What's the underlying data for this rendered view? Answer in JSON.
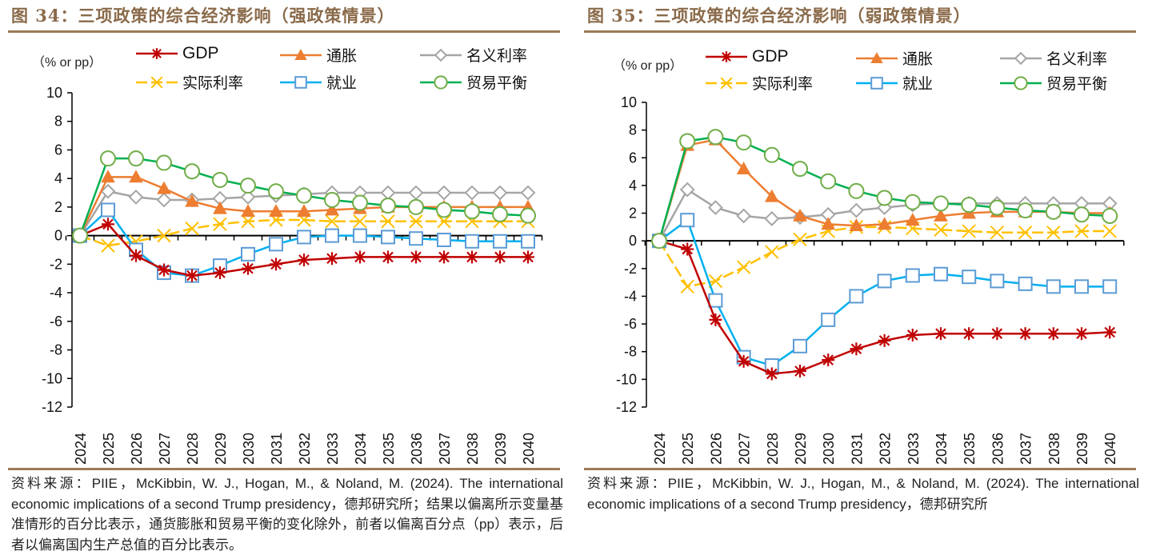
{
  "panels": [
    {
      "title": "图 34：三项政策的综合经济影响（强政策情景）",
      "unit_label": "（% or pp）",
      "source": "资料来源：PIIE，McKibbin, W. J., Hogan, M., & Noland, M. (2024). The international economic implications of a second Trump presidency，德邦研究所；结果以偏离所示变量基准情形的百分比表示，通货膨胀和贸易平衡的变化除外，前者以偏离百分点（pp）表示，后者以偏离国内生产总值的百分比表示。"
    },
    {
      "title": "图 35：三项政策的综合经济影响（弱政策情景）",
      "unit_label": "（% or pp）",
      "source": "资料来源：PIIE，McKibbin, W. J., Hogan, M., & Noland, M. (2024). The international economic implications of a second Trump presidency，德邦研究所"
    }
  ],
  "chart_data": [
    {
      "type": "line",
      "title": "图 34：三项政策的综合经济影响（强政策情景）",
      "ylabel": "% or pp",
      "xlabel": "",
      "ylim": [
        -12,
        10
      ],
      "yticks": [
        10,
        8,
        6,
        4,
        2,
        0,
        -2,
        -4,
        -6,
        -8,
        -10,
        -12
      ],
      "x": [
        "2024",
        "2025",
        "2026",
        "2027",
        "2028",
        "2029",
        "2030",
        "2031",
        "2032",
        "2033",
        "2034",
        "2035",
        "2036",
        "2037",
        "2038",
        "2039",
        "2040"
      ],
      "legend_position": "top",
      "series": [
        {
          "name": "GDP",
          "color": "#c00000",
          "marker": "asterisk",
          "values": [
            0,
            0.8,
            -1.4,
            -2.4,
            -2.8,
            -2.6,
            -2.3,
            -2.0,
            -1.7,
            -1.6,
            -1.5,
            -1.5,
            -1.5,
            -1.5,
            -1.5,
            -1.5,
            -1.5
          ]
        },
        {
          "name": "通胀",
          "color": "#ed7d31",
          "marker": "triangle",
          "values": [
            0,
            4.1,
            4.1,
            3.3,
            2.4,
            1.9,
            1.7,
            1.7,
            1.7,
            1.8,
            1.9,
            2.0,
            2.0,
            2.0,
            2.0,
            2.0,
            2.0
          ]
        },
        {
          "name": "名义利率",
          "color": "#a5a5a5",
          "marker": "diamond",
          "values": [
            0,
            3.1,
            2.7,
            2.5,
            2.5,
            2.6,
            2.7,
            2.8,
            2.9,
            3.0,
            3.0,
            3.0,
            3.0,
            3.0,
            3.0,
            3.0,
            3.0
          ]
        },
        {
          "name": "实际利率",
          "color": "#ffc000",
          "marker": "x",
          "dashed": true,
          "values": [
            0,
            -0.7,
            -0.4,
            0.0,
            0.5,
            0.8,
            1.0,
            1.1,
            1.1,
            1.0,
            1.0,
            1.0,
            1.0,
            1.0,
            1.0,
            1.0,
            1.0
          ]
        },
        {
          "name": "就业",
          "color": "#00b0f0",
          "marker": "square",
          "values": [
            0,
            1.8,
            -1.0,
            -2.6,
            -2.8,
            -2.1,
            -1.3,
            -0.6,
            -0.1,
            0.0,
            0.0,
            -0.1,
            -0.2,
            -0.3,
            -0.4,
            -0.4,
            -0.4
          ]
        },
        {
          "name": "贸易平衡",
          "color": "#00b050",
          "marker": "circle",
          "values": [
            0,
            5.4,
            5.4,
            5.1,
            4.5,
            3.9,
            3.5,
            3.1,
            2.8,
            2.5,
            2.3,
            2.1,
            2.0,
            1.8,
            1.7,
            1.5,
            1.4
          ]
        }
      ]
    },
    {
      "type": "line",
      "title": "图 35：三项政策的综合经济影响（弱政策情景）",
      "ylabel": "% or pp",
      "xlabel": "",
      "ylim": [
        -12,
        10
      ],
      "yticks": [
        10,
        8,
        6,
        4,
        2,
        0,
        -2,
        -4,
        -6,
        -8,
        -10,
        -12
      ],
      "x": [
        "2024",
        "2025",
        "2026",
        "2027",
        "2028",
        "2029",
        "2030",
        "2031",
        "2032",
        "2033",
        "2034",
        "2035",
        "2036",
        "2037",
        "2038",
        "2039",
        "2040"
      ],
      "legend_position": "top",
      "series": [
        {
          "name": "GDP",
          "color": "#c00000",
          "marker": "asterisk",
          "values": [
            0,
            -0.6,
            -5.7,
            -8.7,
            -9.6,
            -9.4,
            -8.6,
            -7.8,
            -7.2,
            -6.8,
            -6.7,
            -6.7,
            -6.7,
            -6.7,
            -6.7,
            -6.7,
            -6.6
          ]
        },
        {
          "name": "通胀",
          "color": "#ed7d31",
          "marker": "triangle",
          "values": [
            0,
            6.9,
            7.3,
            5.2,
            3.2,
            1.8,
            1.2,
            1.1,
            1.2,
            1.5,
            1.8,
            2.0,
            2.1,
            2.1,
            2.1,
            2.0,
            2.0
          ]
        },
        {
          "name": "名义利率",
          "color": "#a5a5a5",
          "marker": "diamond",
          "values": [
            0,
            3.7,
            2.4,
            1.8,
            1.6,
            1.7,
            1.9,
            2.2,
            2.4,
            2.6,
            2.7,
            2.7,
            2.7,
            2.7,
            2.7,
            2.7,
            2.7
          ]
        },
        {
          "name": "实际利率",
          "color": "#ffc000",
          "marker": "x",
          "dashed": true,
          "values": [
            0,
            -3.3,
            -2.9,
            -1.9,
            -0.8,
            0.1,
            0.7,
            1.0,
            1.0,
            0.9,
            0.8,
            0.7,
            0.6,
            0.6,
            0.6,
            0.7,
            0.7
          ]
        },
        {
          "name": "就业",
          "color": "#00b0f0",
          "marker": "square",
          "values": [
            0,
            1.5,
            -4.3,
            -8.4,
            -9.0,
            -7.6,
            -5.7,
            -4.0,
            -2.9,
            -2.5,
            -2.4,
            -2.6,
            -2.9,
            -3.1,
            -3.3,
            -3.3,
            -3.3
          ]
        },
        {
          "name": "贸易平衡",
          "color": "#00b050",
          "marker": "circle",
          "values": [
            0,
            7.2,
            7.5,
            7.1,
            6.2,
            5.2,
            4.3,
            3.6,
            3.1,
            2.8,
            2.7,
            2.6,
            2.4,
            2.2,
            2.1,
            1.9,
            1.8
          ]
        }
      ]
    }
  ]
}
